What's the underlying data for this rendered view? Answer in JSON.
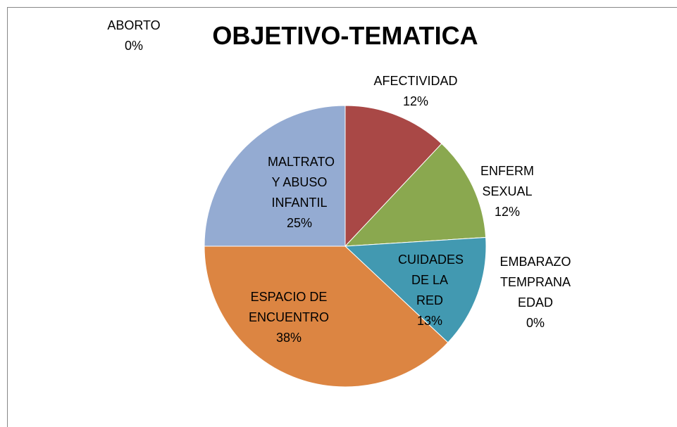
{
  "chart_data": {
    "type": "pie",
    "title": "OBJETIVO-TEMATICA",
    "categories": [
      "ABORTO",
      "AFECTIVIDAD",
      "ENFERM SEXUAL",
      "EMBARAZO TEMPRANA EDAD",
      "CUIDADES DE LA RED",
      "ESPACIO DE ENCUENTRO",
      "MALTRATO Y ABUSO INFANTIL"
    ],
    "values": [
      0,
      12,
      12,
      0,
      13,
      38,
      25
    ],
    "value_labels": [
      "0%",
      "12%",
      "12%",
      "0%",
      "13%",
      "38%",
      "25%"
    ],
    "colors": [
      "#4f81bd",
      "#a94846",
      "#8aa84f",
      "#7f62a0",
      "#4299b1",
      "#dc8542",
      "#94abd2"
    ]
  }
}
